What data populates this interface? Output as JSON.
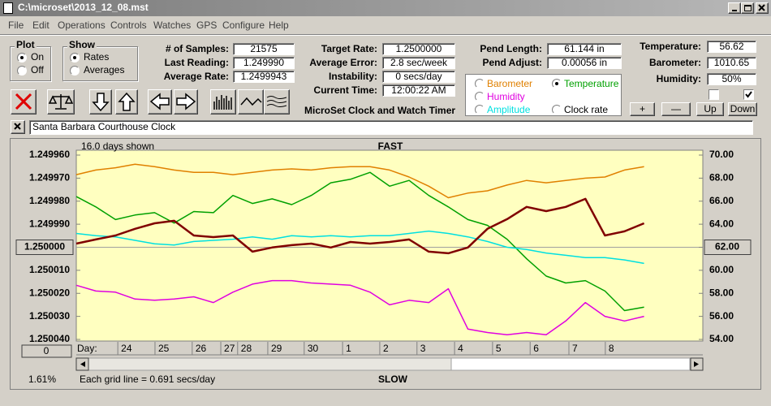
{
  "window": {
    "title": "C:\\microset\\2013_12_08.mst"
  },
  "menu": [
    "File",
    "Edit",
    "Operations",
    "Controls",
    "Watches",
    "GPS",
    "Configure",
    "Help"
  ],
  "plot": {
    "title": "Plot",
    "options": [
      "On",
      "Off"
    ],
    "selected": 0
  },
  "show": {
    "title": "Show",
    "options": [
      "Rates",
      "Averages"
    ],
    "selected": 0
  },
  "stats": [
    {
      "label": "# of Samples:",
      "value": "21575"
    },
    {
      "label": "Last Reading:",
      "value": "1.249990"
    },
    {
      "label": "Average Rate:",
      "value": "1.2499943"
    }
  ],
  "rates": [
    {
      "label": "Target Rate:",
      "value": "1.2500000"
    },
    {
      "label": "Average Error:",
      "value": "2.8 sec/week"
    },
    {
      "label": "Instability:",
      "value": "0 secs/day"
    },
    {
      "label": "Current Time:",
      "value": "12:00:22 AM"
    }
  ],
  "caption": "MicroSet Clock and Watch Timer",
  "pendulum": [
    {
      "label": "Pend Length:",
      "value": "61.144 in"
    },
    {
      "label": "Pend Adjust:",
      "value": "0.00056 in"
    }
  ],
  "sensors": [
    {
      "label": "Temperature:",
      "value": "56.62"
    },
    {
      "label": "Barometer:",
      "value": "1010.65"
    },
    {
      "label": "Humidity:",
      "value": "50%"
    }
  ],
  "checkboxes": [
    false,
    true
  ],
  "adjust_buttons": [
    "+",
    "—",
    "Up",
    "Down"
  ],
  "clock_name": "Santa Barbara Courthouse Clock",
  "chart_data": {
    "type": "line",
    "days_shown": "16.0 days shown",
    "top_label": "FAST",
    "bottom_label": "SLOW",
    "grid_note": "Each grid line = 0.691 secs/day",
    "percent": "1.61%",
    "x_label": "Day:",
    "zoom_button": "0",
    "legend_selected": 1,
    "x": [
      0,
      0.5,
      1,
      1.5,
      2,
      2.5,
      3,
      3.5,
      4,
      4.5,
      5,
      5.5,
      6,
      6.5,
      7,
      7.5,
      8,
      8.5,
      9,
      9.5,
      10,
      10.5,
      11,
      11.5,
      12,
      12.5,
      13,
      13.5,
      14,
      14.5
    ],
    "xlim": [
      0,
      16
    ],
    "xticks": [
      {
        "value": 1.06,
        "label": "24"
      },
      {
        "value": 2.01,
        "label": "25"
      },
      {
        "value": 2.96,
        "label": "26"
      },
      {
        "value": 3.69,
        "label": "27"
      },
      {
        "value": 4.12,
        "label": "28"
      },
      {
        "value": 4.89,
        "label": "29"
      },
      {
        "value": 5.82,
        "label": "30"
      },
      {
        "value": 6.8,
        "label": "1"
      },
      {
        "value": 7.75,
        "label": "2"
      },
      {
        "value": 8.7,
        "label": "3"
      },
      {
        "value": 9.66,
        "label": "4"
      },
      {
        "value": 10.63,
        "label": "5"
      },
      {
        "value": 11.59,
        "label": "6"
      },
      {
        "value": 12.58,
        "label": "7"
      },
      {
        "value": 13.51,
        "label": "8"
      }
    ],
    "ylim": [
      1.25004,
      1.24996
    ],
    "yticks": [
      {
        "value": 1.24996,
        "label": "1.249960"
      },
      {
        "value": 1.24997,
        "label": "1.249970"
      },
      {
        "value": 1.24998,
        "label": "1.249980"
      },
      {
        "value": 1.24999,
        "label": "1.249990"
      },
      {
        "value": 1.25,
        "label": "1.250000"
      },
      {
        "value": 1.25001,
        "label": "1.250010"
      },
      {
        "value": 1.25002,
        "label": "1.250020"
      },
      {
        "value": 1.25003,
        "label": "1.250030"
      },
      {
        "value": 1.25004,
        "label": "1.250040"
      }
    ],
    "y2lim": [
      54,
      70
    ],
    "y2ticks": [
      {
        "value": 70,
        "label": "70.00"
      },
      {
        "value": 68,
        "label": "68.00"
      },
      {
        "value": 66,
        "label": "66.00"
      },
      {
        "value": 64,
        "label": "64.00"
      },
      {
        "value": 62,
        "label": "62.00"
      },
      {
        "value": 60,
        "label": "60.00"
      },
      {
        "value": 58,
        "label": "58.00"
      },
      {
        "value": 56,
        "label": "56.00"
      },
      {
        "value": 54,
        "label": "54.00"
      }
    ],
    "series": [
      {
        "name": "Barometer",
        "color": "#e08000",
        "axis": "y2",
        "values": [
          68.3,
          68.7,
          68.9,
          69.2,
          69.0,
          68.7,
          68.5,
          68.5,
          68.3,
          68.5,
          68.7,
          68.8,
          68.7,
          68.9,
          69.0,
          69.0,
          68.7,
          68.1,
          67.3,
          66.3,
          66.7,
          66.9,
          67.4,
          67.8,
          67.6,
          67.8,
          68.0,
          68.1,
          68.7,
          69.0
        ]
      },
      {
        "name": "Temperature",
        "color": "#00a000",
        "axis": "y2",
        "values": [
          66.4,
          65.5,
          64.4,
          64.8,
          65.0,
          64.1,
          65.1,
          65.0,
          66.5,
          65.8,
          66.2,
          65.7,
          66.5,
          67.6,
          67.9,
          68.5,
          67.3,
          67.8,
          66.5,
          65.5,
          64.4,
          63.9,
          62.7,
          61.0,
          59.5,
          58.9,
          59.1,
          58.2,
          56.5,
          56.8
        ]
      },
      {
        "name": "Humidity",
        "color": "#e000e0",
        "axis": "y2",
        "values": [
          58.7,
          58.2,
          58.1,
          57.5,
          57.4,
          57.5,
          57.7,
          57.2,
          58.1,
          58.8,
          59.1,
          59.1,
          58.9,
          58.8,
          58.7,
          58.1,
          57.0,
          57.4,
          57.2,
          58.4,
          54.9,
          54.6,
          54.4,
          54.6,
          54.4,
          55.6,
          57.2,
          56.0,
          55.6,
          56.0
        ]
      },
      {
        "name": "Amplitude",
        "color": "#00e0e0",
        "axis": "y2",
        "values": [
          63.2,
          63.0,
          62.9,
          62.6,
          62.3,
          62.2,
          62.5,
          62.6,
          62.7,
          62.9,
          62.7,
          63.0,
          62.9,
          63.0,
          62.9,
          63.0,
          63.0,
          63.2,
          63.4,
          63.2,
          62.9,
          62.5,
          62.0,
          61.8,
          61.5,
          61.3,
          61.1,
          61.1,
          60.9,
          60.6
        ]
      },
      {
        "name": "Clock rate",
        "color": "#800000",
        "axis": "y",
        "values": [
          1.2499984,
          1.2499966,
          1.2499949,
          1.249992,
          1.2499896,
          1.2499885,
          1.2499949,
          1.2499956,
          1.2499949,
          1.2500019,
          1.2500001,
          1.2499991,
          1.2499984,
          1.2500001,
          1.2499977,
          1.2499984,
          1.2499977,
          1.2499966,
          1.2500019,
          1.2500026,
          1.2500001,
          1.249992,
          1.2499878,
          1.2499825,
          1.2499843,
          1.2499825,
          1.249979,
          1.2499949,
          1.2499931,
          1.2499896
        ]
      }
    ]
  }
}
